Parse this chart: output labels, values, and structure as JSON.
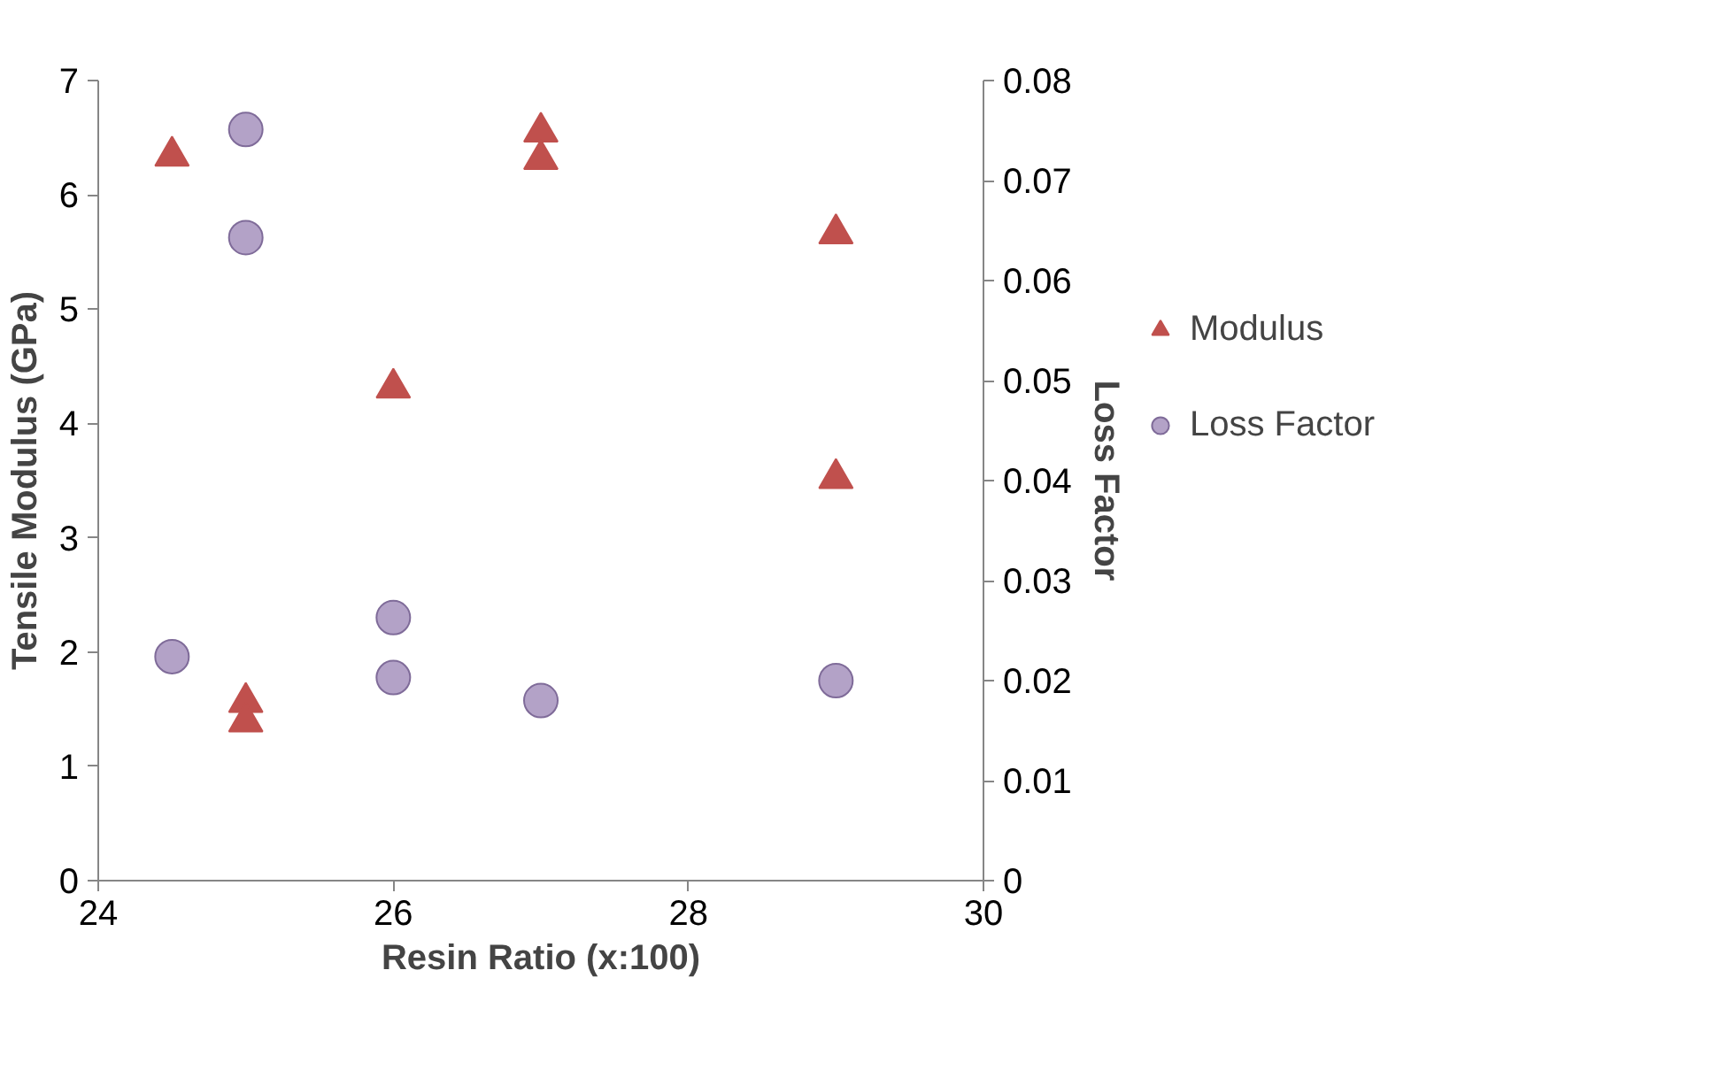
{
  "chart_data": {
    "type": "scatter",
    "xlabel": "Resin Ratio (x:100)",
    "ylabel": "Tensile Modulus (GPa)",
    "y2label": "Loss Factor",
    "xlim": [
      24,
      30
    ],
    "xticks": [
      24,
      26,
      28,
      30
    ],
    "ylim": [
      0,
      7
    ],
    "yticks": [
      0,
      1,
      2,
      3,
      4,
      5,
      6,
      7
    ],
    "y2lim": [
      0,
      0.08
    ],
    "y2ticks": [
      0,
      0.01,
      0.02,
      0.03,
      0.04,
      0.05,
      0.06,
      0.07,
      0.08
    ],
    "grid": false,
    "legend": "right",
    "series": [
      {
        "name": "Modulus",
        "color": "#c0504d",
        "marker": "triangle",
        "x": [
          24.5,
          25,
          25,
          26,
          27,
          27,
          29,
          29
        ],
        "values": [
          6.34,
          1.56,
          1.39,
          4.31,
          6.55,
          6.31,
          5.66,
          3.52
        ]
      },
      {
        "name": "Loss Factor",
        "color": "#b3a2c7",
        "marker": "circle",
        "axis": "y2",
        "x": [
          24.5,
          25,
          25,
          26,
          26,
          27,
          29
        ],
        "values": [
          0.0224,
          0.0751,
          0.0643,
          0.0263,
          0.0203,
          0.018,
          0.02
        ]
      }
    ]
  }
}
